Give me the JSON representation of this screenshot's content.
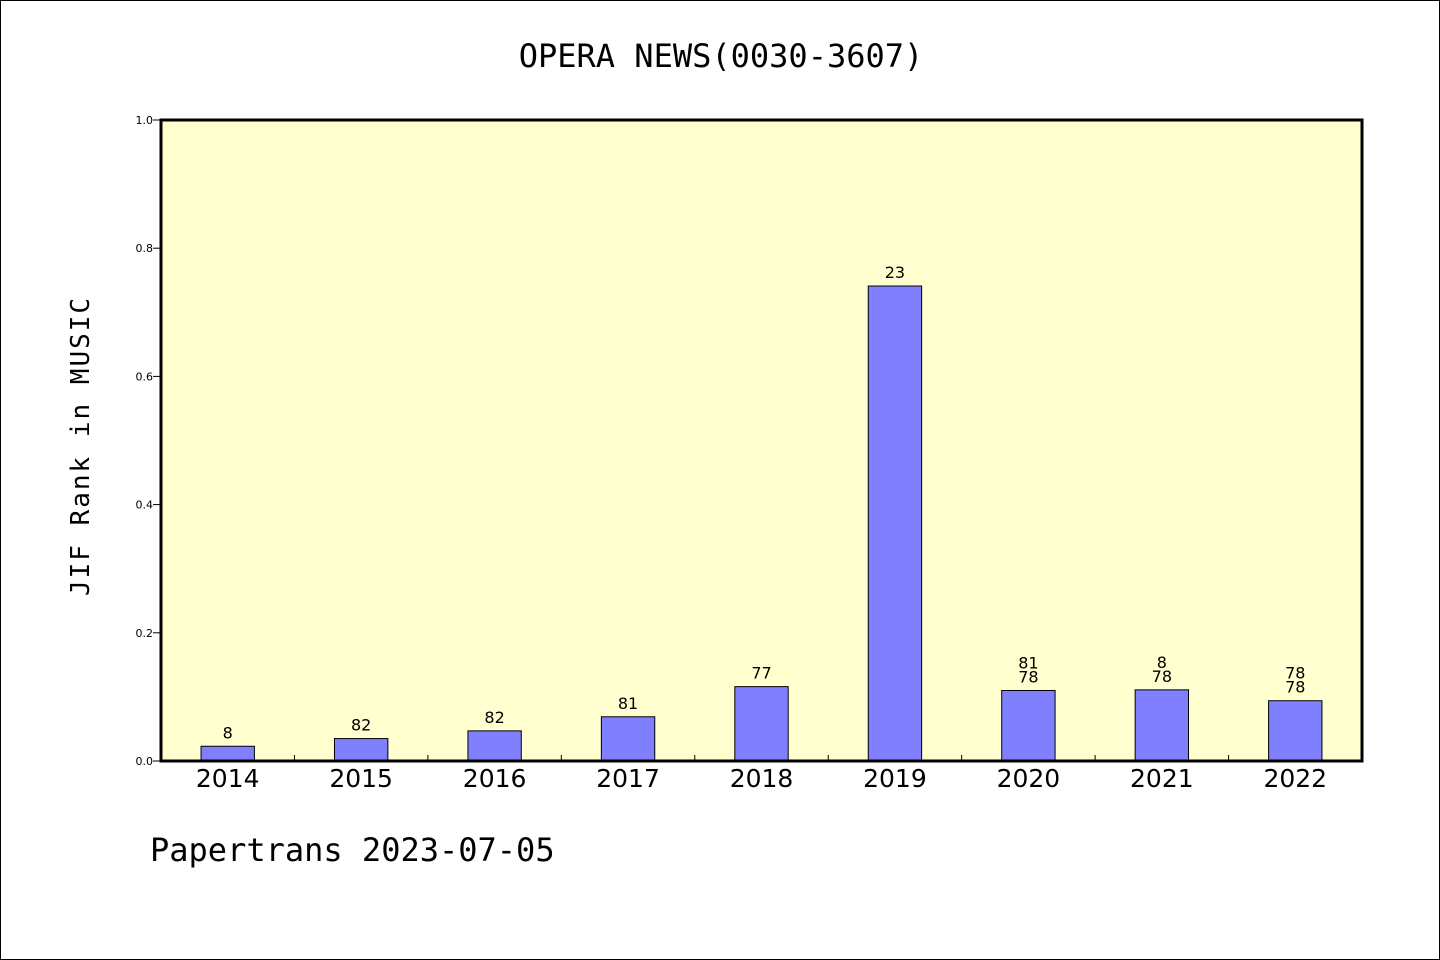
{
  "chart_data": {
    "type": "bar",
    "title": "OPERA NEWS(0030-3607)",
    "xlabel": "",
    "ylabel": "JIF Rank in MUSIC",
    "ylim": [
      0,
      1.0
    ],
    "yticks": [
      "0.0",
      "0.2",
      "0.4",
      "0.6",
      "0.8",
      "1.0"
    ],
    "grid": false,
    "categories": [
      "2014",
      "2015",
      "2016",
      "2017",
      "2018",
      "2019",
      "2020",
      "2021",
      "2022"
    ],
    "values": [
      0.023,
      0.035,
      0.047,
      0.069,
      0.116,
      0.741,
      0.11,
      0.111,
      0.094
    ],
    "data_labels": [
      [
        "8"
      ],
      [
        "82"
      ],
      [
        "82"
      ],
      [
        "81"
      ],
      [
        "77"
      ],
      [
        "23"
      ],
      [
        "81",
        "78"
      ],
      [
        "8",
        "78"
      ],
      [
        "78",
        "78"
      ]
    ],
    "colors": {
      "bar": "#8080ff",
      "plot_background": "#ffffd0"
    }
  },
  "footer": "Papertrans 2023-07-05"
}
